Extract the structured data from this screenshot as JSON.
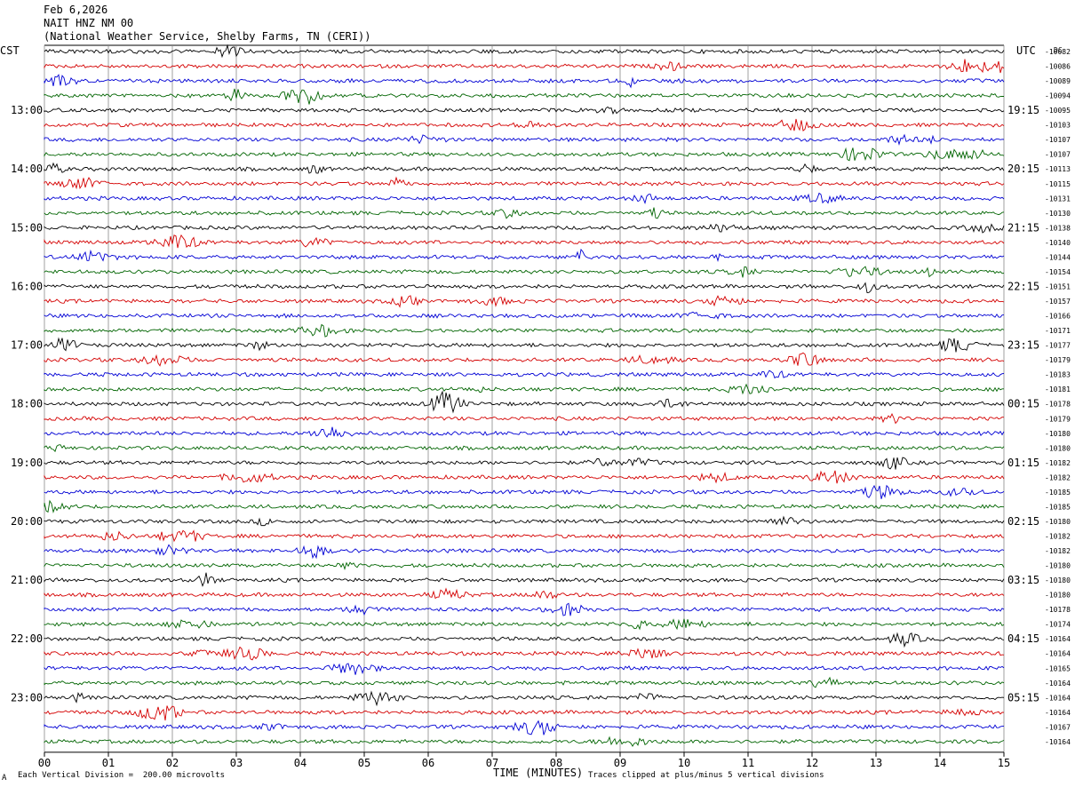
{
  "header": {
    "date": "Feb 6,2026",
    "station": "NAIT HNZ NM 00",
    "network": "(National Weather Service, Shelby Farms, TN (CERI))"
  },
  "left_timezone": "CST",
  "right_timezone": "UTC",
  "corner_label": "DC",
  "footer": {
    "scale_note": "Each Vertical Division =  200.00 microvolts",
    "clip_note": "Traces clipped at plus/minus 5 vertical divisions",
    "corner_mark": "A"
  },
  "chart_data": {
    "type": "line",
    "xlabel": "TIME (MINUTES)",
    "x_ticks": [
      "00",
      "01",
      "02",
      "03",
      "04",
      "05",
      "06",
      "07",
      "08",
      "09",
      "10",
      "11",
      "12",
      "13",
      "14",
      "15"
    ],
    "xlim": [
      0,
      15
    ],
    "grid": "vertical lines at each minute",
    "trace_colors": [
      "#000000",
      "#d40000",
      "#0000d4",
      "#006400"
    ],
    "left_hour_labels": [
      "13:00",
      "14:00",
      "15:00",
      "16:00",
      "17:00",
      "18:00",
      "19:00",
      "20:00",
      "21:00",
      "22:00",
      "23:00"
    ],
    "right_hour_labels": [
      "19:15",
      "20:15",
      "21:15",
      "22:15",
      "23:15",
      "00:15",
      "01:15",
      "02:15",
      "03:15",
      "04:15",
      "05:15"
    ],
    "dc_offsets": [
      "-10082",
      "-10086",
      "-10089",
      "-10094",
      "-10095",
      "-10103",
      "-10107",
      "-10107",
      "-10113",
      "-10115",
      "-10131",
      "-10130",
      "-10138",
      "-10140",
      "-10144",
      "-10154",
      "-10151",
      "-10157",
      "-10166",
      "-10171",
      "-10177",
      "-10179",
      "-10183",
      "-10181",
      "-10178",
      "-10179",
      "-10180",
      "-10180",
      "-10182",
      "-10182",
      "-10185",
      "-10185",
      "-10180",
      "-10182",
      "-10182",
      "-10180",
      "-10180",
      "-10180",
      "-10178",
      "-10174",
      "-10164",
      "-10164",
      "-10165",
      "-10164",
      "-10164",
      "-10164",
      "-10167",
      "-10164"
    ]
  }
}
